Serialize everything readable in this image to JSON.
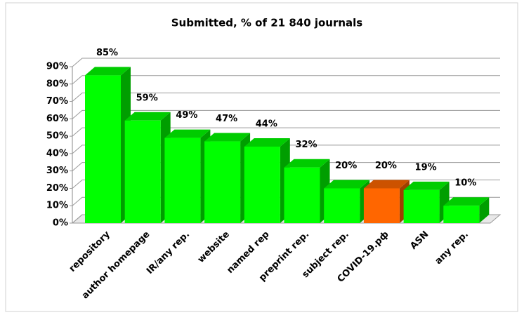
{
  "chart_data": {
    "type": "bar3d",
    "title": "Submitted, % of 21 840 journals",
    "categories": [
      "repository",
      "author homepage",
      "IR/any rep.",
      "website",
      "named rep",
      "preprint rep.",
      "subject rep.",
      "COVID-19.рф",
      "ASN",
      "any rep."
    ],
    "values": [
      85,
      59,
      49,
      47,
      44,
      32,
      20,
      20,
      19,
      10
    ],
    "value_labels": [
      "85%",
      "59%",
      "49%",
      "47%",
      "44%",
      "32%",
      "20%",
      "20%",
      "19%",
      "10%"
    ],
    "colors": [
      "#00ff00",
      "#00ff00",
      "#00ff00",
      "#00ff00",
      "#00ff00",
      "#00ff00",
      "#00ff00",
      "#ff6600",
      "#00ff00",
      "#00ff00"
    ],
    "ylim": [
      0,
      90
    ],
    "yticks": [
      {
        "value": 0,
        "label": "0%"
      },
      {
        "value": 10,
        "label": "10%"
      },
      {
        "value": 20,
        "label": "20%"
      },
      {
        "value": 30,
        "label": "30%"
      },
      {
        "value": 40,
        "label": "40%"
      },
      {
        "value": 50,
        "label": "50%"
      },
      {
        "value": 60,
        "label": "60%"
      },
      {
        "value": 70,
        "label": "70%"
      },
      {
        "value": 80,
        "label": "80%"
      },
      {
        "value": 90,
        "label": "90%"
      }
    ],
    "grid": true
  }
}
